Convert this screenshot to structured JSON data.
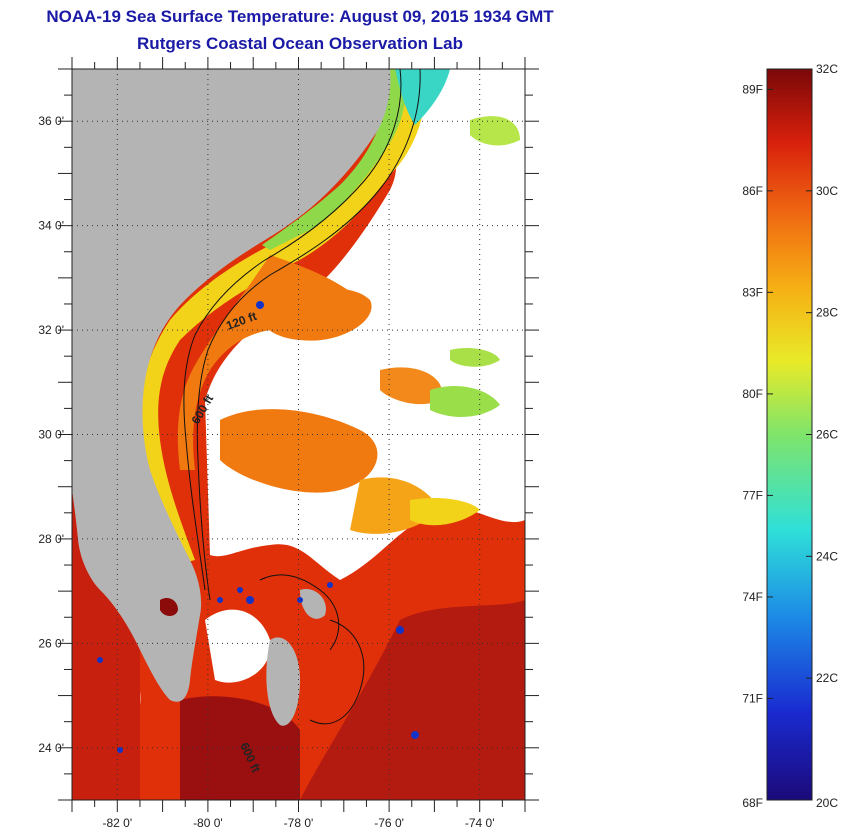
{
  "title": "NOAA-19 Sea Surface Temperature:  August 09, 2015 1934 GMT",
  "subtitle": "Rutgers Coastal Ocean Observation Lab",
  "map": {
    "lat_labels": [
      "36 0'",
      "34 0'",
      "32 0'",
      "30 0'",
      "28 0'",
      "26 0'",
      "24 0'"
    ],
    "lon_labels": [
      "-82 0'",
      "-80 0'",
      "-78 0'",
      "-76 0'",
      "-74 0'"
    ],
    "contour_labels": [
      "120 ft",
      "600 ft",
      "600 ft"
    ],
    "colors": {
      "land": "#b4b4b4",
      "cloud": "#ffffff",
      "warm": "#e0300a",
      "hot": "#9a0f0f",
      "orange": "#f07a10",
      "yellow": "#f3d21a",
      "green": "#9adf4a",
      "cyan": "#39d6c6",
      "blue": "#1233c8"
    }
  },
  "colorbar": {
    "f_labels": [
      "89F",
      "86F",
      "83F",
      "80F",
      "77F",
      "74F",
      "71F",
      "68F"
    ],
    "c_labels": [
      "32C",
      "30C",
      "28C",
      "26C",
      "24C",
      "22C",
      "20C"
    ],
    "c_min": 20,
    "c_max": 32
  }
}
